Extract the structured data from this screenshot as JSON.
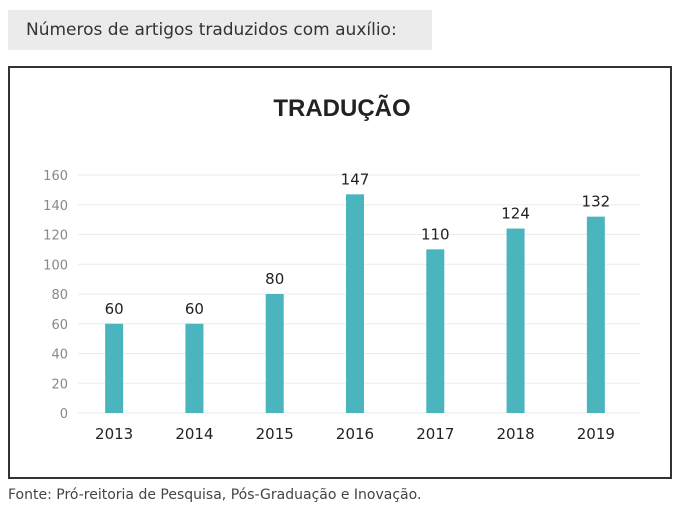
{
  "heading": "Números de artigos traduzidos com auxílio:",
  "source": "Fonte: Pró-reitoria de Pesquisa, Pós-Graduação e Inovação.",
  "chart_data": {
    "type": "bar",
    "title": "TRADUÇÃO",
    "xlabel": "",
    "ylabel": "",
    "categories": [
      "2013",
      "2014",
      "2015",
      "2016",
      "2017",
      "2018",
      "2019"
    ],
    "values": [
      60,
      60,
      80,
      147,
      110,
      124,
      132
    ],
    "ylim": [
      0,
      160
    ],
    "yticks": [
      0,
      20,
      40,
      60,
      80,
      100,
      120,
      140,
      160
    ],
    "grid": true,
    "legend": "none",
    "bar_color": "#4ab5bd",
    "data_labels": true
  }
}
